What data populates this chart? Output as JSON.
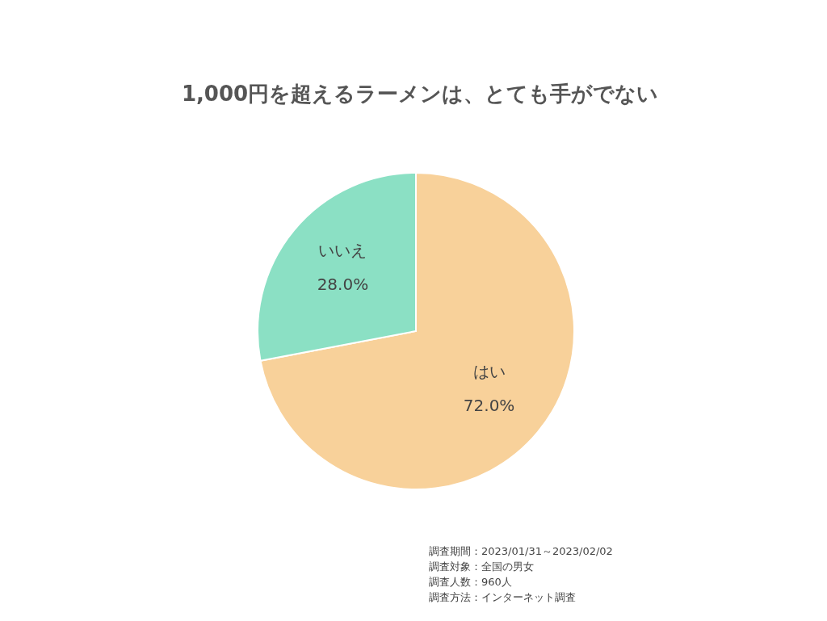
{
  "chart_data": {
    "type": "pie",
    "title": "1,000円を超えるラーメンは、とても手がでない",
    "categories": [
      "はい",
      "いいえ"
    ],
    "values": [
      72.0,
      28.0
    ],
    "value_labels": [
      "72.0%",
      "28.0%"
    ],
    "colors": [
      "#f8d19a",
      "#8be0c4"
    ],
    "legend": false,
    "annotations": [
      "調査期間：2023/01/31～2023/02/02",
      "調査対象：全国の男女",
      "調査人数：960人",
      "調査方法：インターネット調査"
    ]
  }
}
